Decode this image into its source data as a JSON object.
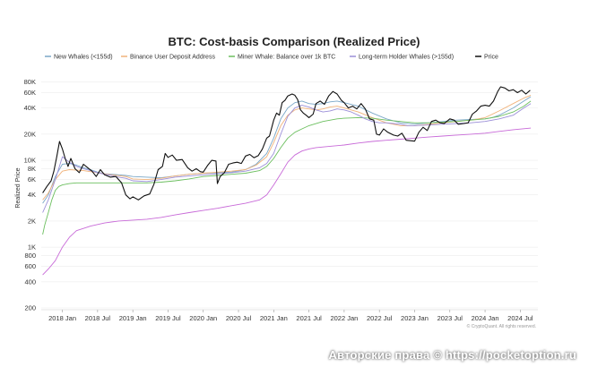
{
  "watermark": "Авторские права © https://pocketoption.ru",
  "chart_data": {
    "type": "line",
    "title": "BTC: Cost-basis Comparison (Realized Price)",
    "ylabel": "Realized Price",
    "xlabel": "",
    "yscale": "log",
    "ylim": [
      200,
      100000
    ],
    "y_ticks": [
      {
        "v": 80000,
        "label": "80K"
      },
      {
        "v": 60000,
        "label": "60K"
      },
      {
        "v": 40000,
        "label": "40K"
      },
      {
        "v": 20000,
        "label": "20K"
      },
      {
        "v": 10000,
        "label": "10K"
      },
      {
        "v": 8000,
        "label": "8K"
      },
      {
        "v": 6000,
        "label": "6K"
      },
      {
        "v": 4000,
        "label": "4K"
      },
      {
        "v": 2000,
        "label": "2K"
      },
      {
        "v": 1000,
        "label": "1K"
      },
      {
        "v": 800,
        "label": "800"
      },
      {
        "v": 600,
        "label": "600"
      },
      {
        "v": 400,
        "label": "400"
      },
      {
        "v": 200,
        "label": "200"
      }
    ],
    "x_range": [
      2017.7,
      2024.75
    ],
    "x_ticks": [
      {
        "v": 2018.0,
        "label": "2018 Jan"
      },
      {
        "v": 2018.5,
        "label": "2018 Jul"
      },
      {
        "v": 2019.0,
        "label": "2019 Jan"
      },
      {
        "v": 2019.5,
        "label": "2019 Jul"
      },
      {
        "v": 2020.0,
        "label": "2020 Jan"
      },
      {
        "v": 2020.5,
        "label": "2020 Jul"
      },
      {
        "v": 2021.0,
        "label": "2021 Jan"
      },
      {
        "v": 2021.5,
        "label": "2021 Jul"
      },
      {
        "v": 2022.0,
        "label": "2022 Jan"
      },
      {
        "v": 2022.5,
        "label": "2022 Jul"
      },
      {
        "v": 2023.0,
        "label": "2023 Jan"
      },
      {
        "v": 2023.5,
        "label": "2023 Jul"
      },
      {
        "v": 2024.0,
        "label": "2024 Jan"
      },
      {
        "v": 2024.5,
        "label": "2024 Jul"
      }
    ],
    "legend_placement": "top",
    "grid": "horizontal",
    "credit": "© CryptoQuant. All rights reserved.",
    "series": [
      {
        "name": "New Whales (<155d)",
        "color": "#7aa7c7",
        "x": [
          2017.72,
          2017.8,
          2017.9,
          2018.0,
          2018.1,
          2018.2,
          2018.3,
          2018.4,
          2018.5,
          2018.6,
          2018.7,
          2018.8,
          2018.9,
          2019.0,
          2019.2,
          2019.4,
          2019.6,
          2019.8,
          2020.0,
          2020.2,
          2020.4,
          2020.6,
          2020.75,
          2020.9,
          2021.0,
          2021.1,
          2021.2,
          2021.3,
          2021.4,
          2021.5,
          2021.6,
          2021.7,
          2021.8,
          2021.9,
          2022.0,
          2022.2,
          2022.4,
          2022.6,
          2022.8,
          2023.0,
          2023.2,
          2023.4,
          2023.6,
          2023.8,
          2024.0,
          2024.1,
          2024.2,
          2024.4,
          2024.55,
          2024.65
        ],
        "y": [
          3200,
          4000,
          6500,
          9000,
          9200,
          8800,
          8200,
          7800,
          7300,
          7000,
          6900,
          6800,
          6700,
          6500,
          6400,
          6300,
          6600,
          6900,
          7100,
          7200,
          7300,
          7800,
          9000,
          12000,
          18000,
          30000,
          40000,
          46000,
          48000,
          45000,
          44000,
          45000,
          47000,
          48000,
          46000,
          42000,
          35000,
          30000,
          27000,
          26000,
          27000,
          28000,
          29000,
          29500,
          30000,
          31000,
          33000,
          40000,
          48000,
          54000
        ]
      },
      {
        "name": "Binance User Deposit Address",
        "color": "#f0b27a",
        "x": [
          2017.72,
          2017.8,
          2017.9,
          2018.0,
          2018.1,
          2018.3,
          2018.5,
          2018.7,
          2018.9,
          2019.0,
          2019.2,
          2019.4,
          2019.6,
          2019.8,
          2020.0,
          2020.2,
          2020.4,
          2020.6,
          2020.75,
          2020.9,
          2021.0,
          2021.1,
          2021.2,
          2021.3,
          2021.4,
          2021.5,
          2021.6,
          2021.7,
          2021.8,
          2021.9,
          2022.0,
          2022.2,
          2022.4,
          2022.6,
          2022.8,
          2023.0,
          2023.2,
          2023.4,
          2023.6,
          2023.8,
          2024.0,
          2024.2,
          2024.4,
          2024.55,
          2024.65
        ],
        "y": [
          3500,
          4200,
          6000,
          7500,
          7800,
          7600,
          7200,
          6800,
          6500,
          6100,
          6000,
          6200,
          6600,
          6900,
          7100,
          7300,
          7500,
          7800,
          8800,
          11000,
          16000,
          25000,
          33000,
          38000,
          40000,
          39000,
          38000,
          39000,
          41000,
          42000,
          40000,
          36000,
          31000,
          27000,
          25000,
          25000,
          26000,
          27000,
          28000,
          29000,
          31000,
          37000,
          45000,
          52000,
          56000
        ]
      },
      {
        "name": "Miner Whale: Balance over 1k BTC",
        "color": "#6cbf5f",
        "x": [
          2017.72,
          2017.75,
          2017.8,
          2017.85,
          2017.9,
          2017.95,
          2018.0,
          2018.1,
          2018.2,
          2018.3,
          2018.4,
          2018.5,
          2018.7,
          2018.9,
          2019.0,
          2019.2,
          2019.4,
          2019.6,
          2019.8,
          2020.0,
          2020.2,
          2020.4,
          2020.6,
          2020.8,
          2020.9,
          2021.0,
          2021.1,
          2021.2,
          2021.3,
          2021.4,
          2021.5,
          2021.7,
          2021.9,
          2022.0,
          2022.2,
          2022.4,
          2022.6,
          2022.8,
          2023.0,
          2023.2,
          2023.4,
          2023.6,
          2023.8,
          2024.0,
          2024.2,
          2024.4,
          2024.55,
          2024.65
        ],
        "y": [
          1400,
          1800,
          2500,
          3500,
          4500,
          5000,
          5200,
          5400,
          5500,
          5500,
          5500,
          5500,
          5500,
          5500,
          5500,
          5500,
          5600,
          5800,
          6100,
          6500,
          6700,
          6900,
          7100,
          7600,
          8500,
          10500,
          14000,
          18000,
          21000,
          23000,
          25000,
          28000,
          30000,
          30500,
          31000,
          30500,
          29000,
          28000,
          27000,
          27000,
          27500,
          28000,
          29000,
          30000,
          32000,
          36000,
          42000,
          48000
        ]
      },
      {
        "name": "Long-term Holder Whales (>155d)",
        "color": "#9b8fd8",
        "x": [
          2017.72,
          2017.8,
          2017.9,
          2018.0,
          2018.1,
          2018.2,
          2018.3,
          2018.4,
          2018.5,
          2018.6,
          2018.7,
          2018.8,
          2018.9,
          2019.0,
          2019.2,
          2019.4,
          2019.6,
          2019.8,
          2020.0,
          2020.2,
          2020.4,
          2020.6,
          2020.8,
          2020.9,
          2021.0,
          2021.1,
          2021.2,
          2021.3,
          2021.4,
          2021.5,
          2021.6,
          2021.7,
          2021.8,
          2021.9,
          2022.0,
          2022.1,
          2022.2,
          2022.3,
          2022.4,
          2022.5,
          2022.6,
          2022.7,
          2022.8,
          2022.9,
          2023.0,
          2023.2,
          2023.4,
          2023.6,
          2023.8,
          2024.0,
          2024.2,
          2024.4,
          2024.55,
          2024.65
        ],
        "y": [
          2500,
          3500,
          6000,
          11000,
          9500,
          8500,
          8000,
          7600,
          7200,
          6900,
          6700,
          6400,
          6200,
          5800,
          5700,
          6000,
          6400,
          6600,
          6800,
          7000,
          7200,
          7500,
          8200,
          9200,
          12000,
          20000,
          32000,
          40000,
          43000,
          41000,
          38000,
          36000,
          37000,
          39000,
          38000,
          36000,
          33000,
          30000,
          28000,
          27000,
          27000,
          26500,
          26000,
          25000,
          25000,
          25500,
          26000,
          26500,
          27000,
          28000,
          30000,
          33000,
          40000,
          45000
        ]
      },
      {
        "name": "",
        "color": "#c86ad8",
        "x": [
          2017.72,
          2017.8,
          2017.9,
          2018.0,
          2018.1,
          2018.2,
          2018.4,
          2018.6,
          2018.8,
          2019.0,
          2019.2,
          2019.4,
          2019.6,
          2019.8,
          2020.0,
          2020.2,
          2020.4,
          2020.6,
          2020.8,
          2020.9,
          2021.0,
          2021.1,
          2021.2,
          2021.3,
          2021.4,
          2021.5,
          2021.6,
          2021.8,
          2022.0,
          2022.2,
          2022.4,
          2022.6,
          2022.8,
          2023.0,
          2023.2,
          2023.4,
          2023.6,
          2023.8,
          2024.0,
          2024.2,
          2024.4,
          2024.6,
          2024.65
        ],
        "y": [
          480,
          560,
          700,
          1000,
          1300,
          1550,
          1750,
          1900,
          2000,
          2050,
          2100,
          2200,
          2350,
          2500,
          2650,
          2800,
          3000,
          3200,
          3500,
          4000,
          5200,
          7000,
          9500,
          11500,
          12800,
          13500,
          14000,
          14500,
          15000,
          15800,
          16500,
          17000,
          17500,
          18000,
          18500,
          19000,
          19500,
          20000,
          20500,
          21500,
          22500,
          23300,
          23500
        ]
      },
      {
        "name": "Price",
        "color": "#111111",
        "x": [
          2017.72,
          2017.78,
          2017.84,
          2017.88,
          2017.92,
          2017.96,
          2018.0,
          2018.04,
          2018.08,
          2018.12,
          2018.18,
          2018.24,
          2018.3,
          2018.36,
          2018.42,
          2018.48,
          2018.54,
          2018.6,
          2018.68,
          2018.76,
          2018.84,
          2018.9,
          2018.96,
          2019.0,
          2019.08,
          2019.16,
          2019.24,
          2019.3,
          2019.36,
          2019.42,
          2019.46,
          2019.5,
          2019.56,
          2019.62,
          2019.7,
          2019.78,
          2019.84,
          2019.9,
          2019.96,
          2020.0,
          2020.06,
          2020.12,
          2020.18,
          2020.2,
          2020.24,
          2020.3,
          2020.36,
          2020.42,
          2020.48,
          2020.54,
          2020.6,
          2020.66,
          2020.72,
          2020.78,
          2020.84,
          2020.9,
          2020.94,
          2021.0,
          2021.04,
          2021.08,
          2021.12,
          2021.16,
          2021.2,
          2021.26,
          2021.3,
          2021.34,
          2021.38,
          2021.42,
          2021.46,
          2021.5,
          2021.56,
          2021.6,
          2021.66,
          2021.72,
          2021.78,
          2021.84,
          2021.9,
          2021.96,
          2022.0,
          2022.06,
          2022.12,
          2022.18,
          2022.24,
          2022.3,
          2022.36,
          2022.42,
          2022.46,
          2022.5,
          2022.56,
          2022.62,
          2022.7,
          2022.76,
          2022.82,
          2022.88,
          2022.94,
          2023.0,
          2023.06,
          2023.12,
          2023.18,
          2023.24,
          2023.3,
          2023.36,
          2023.42,
          2023.5,
          2023.56,
          2023.62,
          2023.7,
          2023.76,
          2023.82,
          2023.88,
          2023.94,
          2024.0,
          2024.06,
          2024.12,
          2024.18,
          2024.22,
          2024.28,
          2024.34,
          2024.4,
          2024.46,
          2024.52,
          2024.58,
          2024.64
        ],
        "y": [
          4200,
          5000,
          5800,
          7500,
          11000,
          16500,
          13500,
          10500,
          8500,
          10500,
          8000,
          7200,
          9000,
          8200,
          7500,
          6500,
          7800,
          6800,
          6400,
          6500,
          5500,
          4000,
          3600,
          3800,
          3500,
          3900,
          4100,
          5300,
          7800,
          8500,
          12000,
          10800,
          11500,
          10000,
          10200,
          8200,
          7500,
          8000,
          7400,
          7300,
          8700,
          10000,
          9800,
          5400,
          6500,
          7200,
          9000,
          9300,
          9500,
          9200,
          11200,
          11700,
          10700,
          11300,
          13500,
          18000,
          19000,
          29000,
          35000,
          33000,
          46000,
          49000,
          55000,
          58000,
          56000,
          50000,
          38000,
          35000,
          33000,
          31000,
          34000,
          45000,
          48000,
          44000,
          55000,
          62000,
          58000,
          49000,
          46000,
          40000,
          42000,
          39000,
          45000,
          39000,
          30000,
          29000,
          20000,
          19500,
          23000,
          21000,
          19500,
          19000,
          20500,
          17000,
          16800,
          16600,
          21000,
          24000,
          22000,
          28000,
          29000,
          27000,
          26500,
          30000,
          29000,
          26000,
          26500,
          27000,
          34000,
          37000,
          42000,
          43000,
          42000,
          48000,
          62000,
          70000,
          68000,
          63000,
          65000,
          60000,
          64000,
          58000,
          64000
        ]
      }
    ]
  }
}
